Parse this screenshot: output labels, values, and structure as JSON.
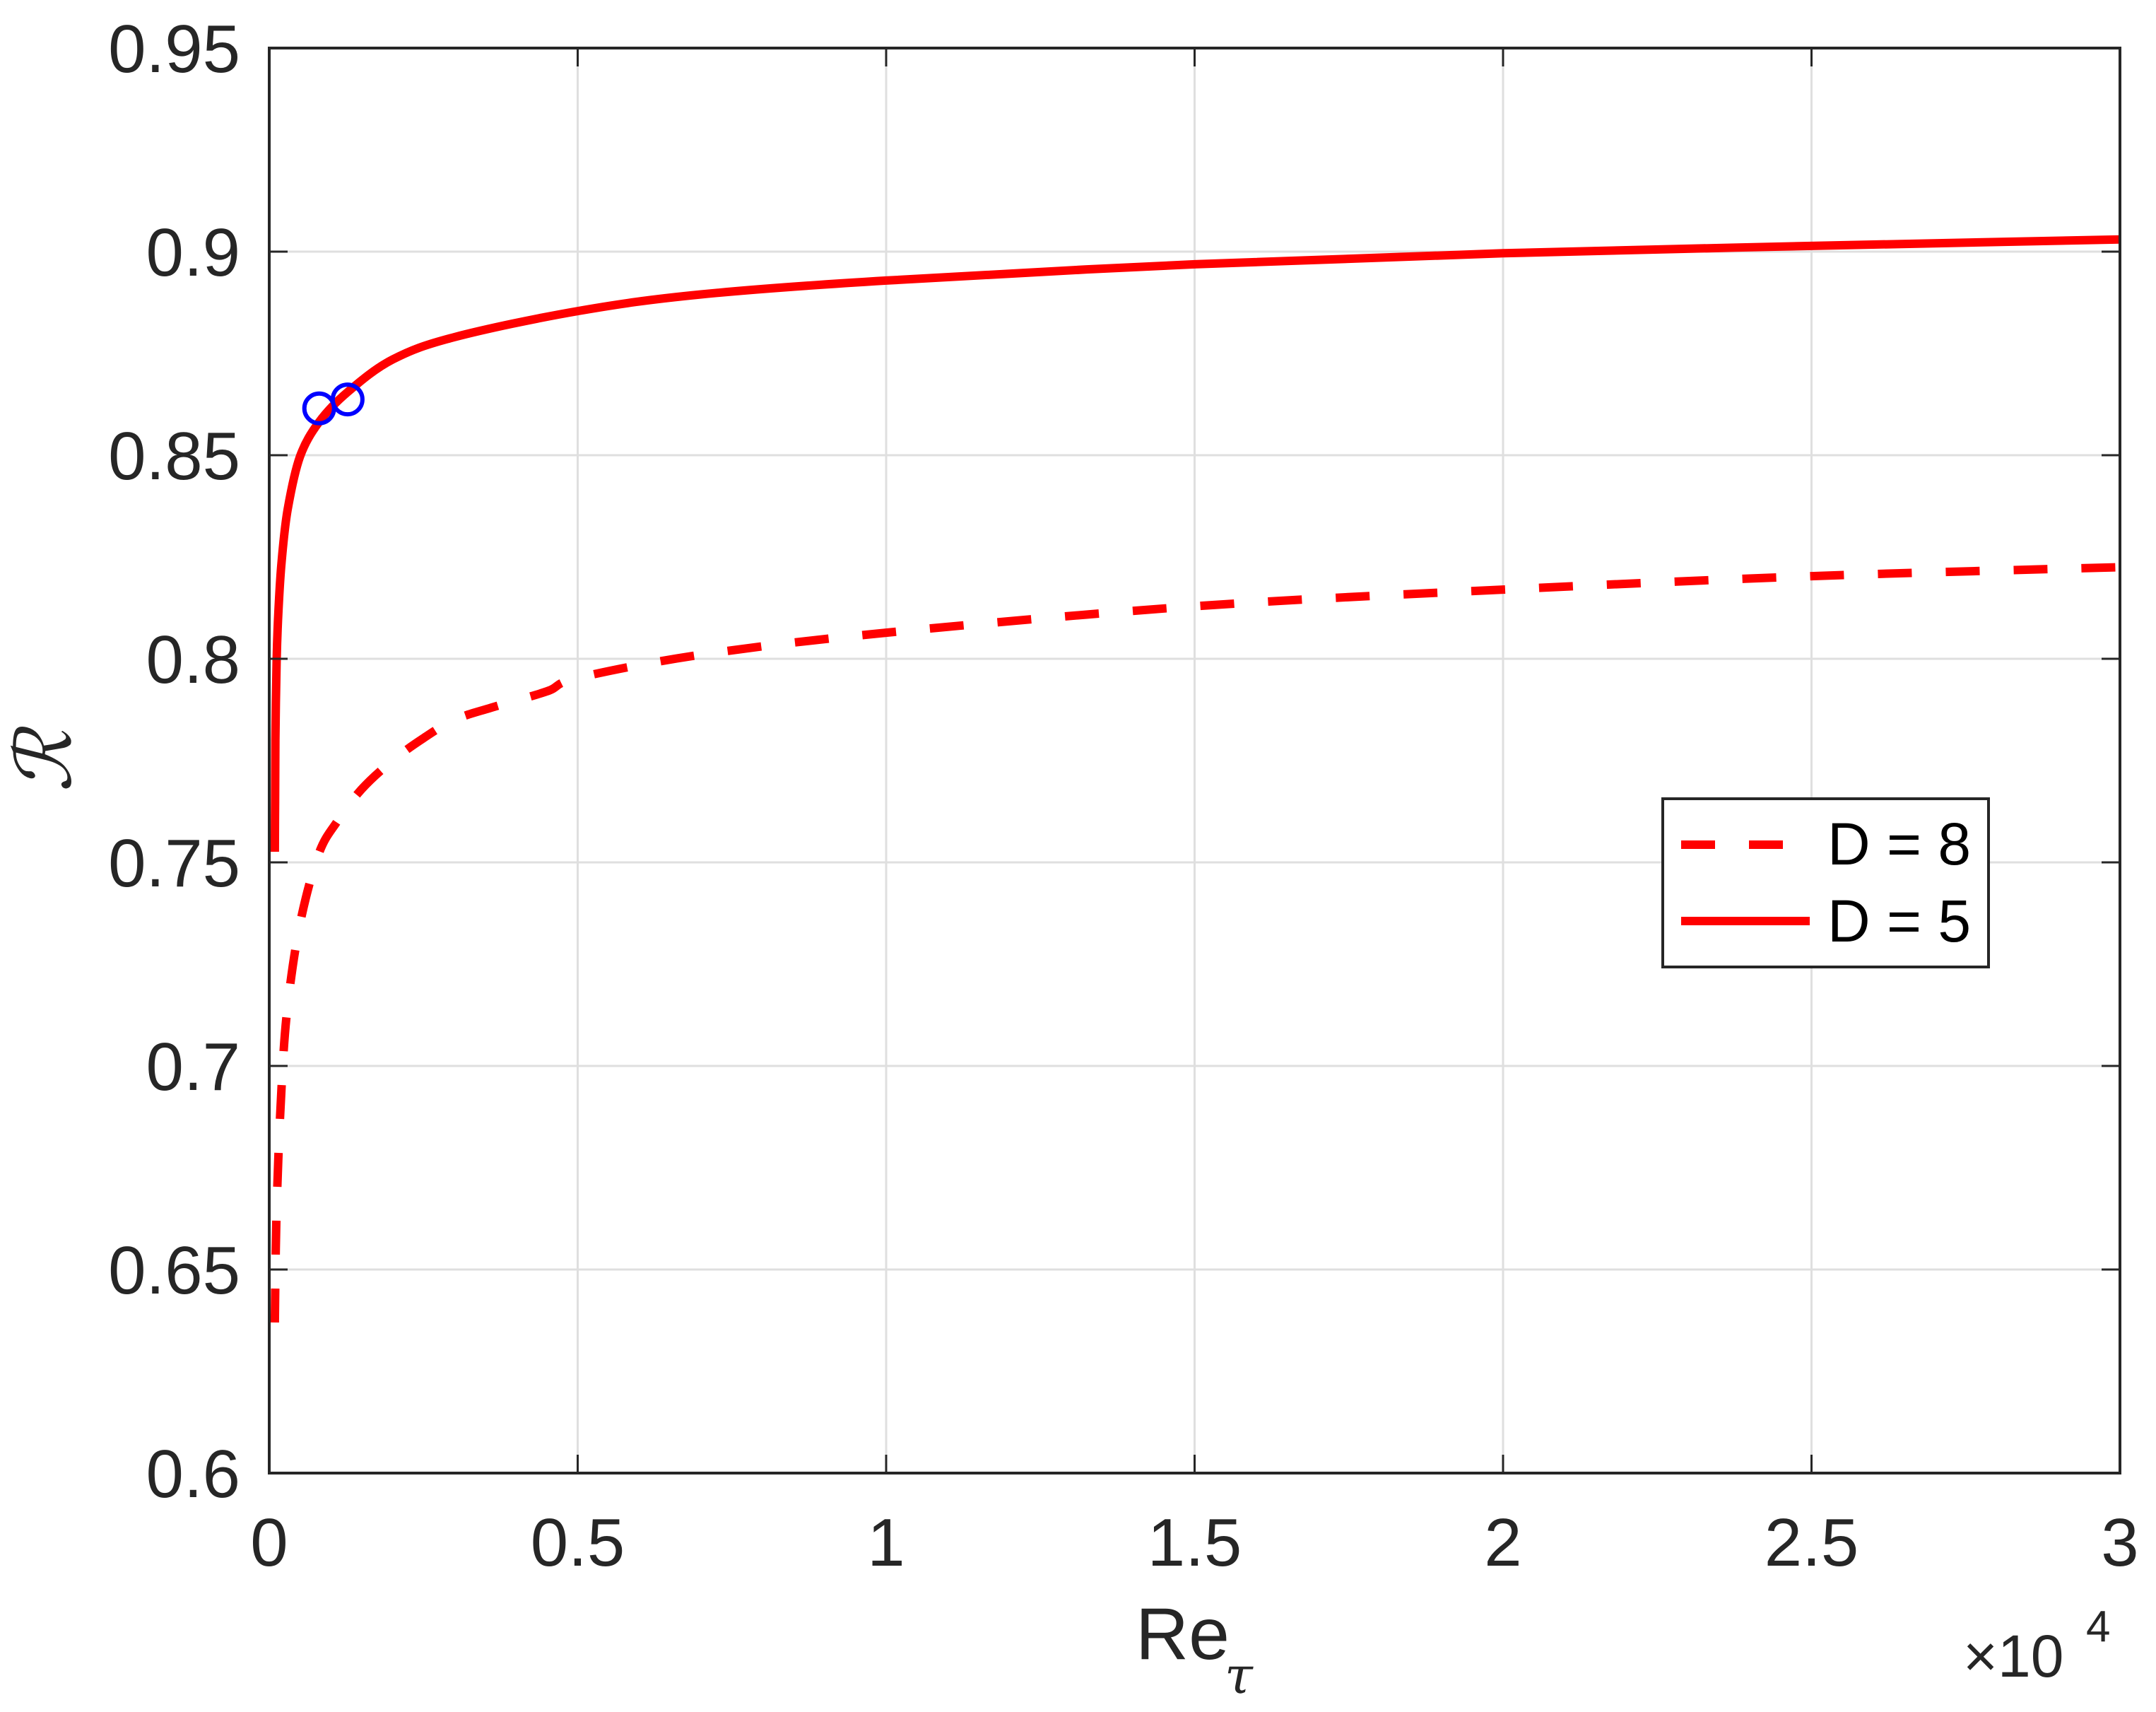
{
  "chart_data": {
    "type": "line",
    "title": "",
    "xlabel": "Re_τ",
    "xlabel_main": "Re",
    "xlabel_sub": "τ",
    "ylabel": "ℛ",
    "x_multiplier": "×10",
    "x_multiplier_exp": "4",
    "xlim": [
      0,
      3
    ],
    "ylim": [
      0.6,
      0.95
    ],
    "x_scale_note": "x values in units of 10^4",
    "grid": true,
    "box": true,
    "xticks": [
      0,
      0.5,
      1,
      1.5,
      2,
      2.5,
      3
    ],
    "xtick_labels": [
      "0",
      "0.5",
      "1",
      "1.5",
      "2",
      "2.5",
      "3"
    ],
    "yticks": [
      0.6,
      0.65,
      0.7,
      0.75,
      0.8,
      0.85,
      0.9,
      0.95
    ],
    "ytick_labels": [
      "0.6",
      "0.65",
      "0.7",
      "0.75",
      "0.8",
      "0.85",
      "0.9",
      "0.95"
    ],
    "legend_position": "right-center (inside axes)",
    "series": [
      {
        "name": "D = 8",
        "style": "dashed",
        "color": "#ff0000",
        "x": [
          0.009,
          0.012,
          0.02,
          0.03,
          0.05,
          0.08,
          0.11,
          0.15,
          0.2,
          0.25,
          0.3,
          0.36,
          0.45,
          0.5,
          0.7,
          1.0,
          1.5,
          2.0,
          2.5,
          3.0
        ],
        "y": [
          0.637,
          0.665,
          0.695,
          0.715,
          0.735,
          0.752,
          0.76,
          0.768,
          0.775,
          0.7805,
          0.785,
          0.788,
          0.792,
          0.7953,
          0.801,
          0.8064,
          0.8129,
          0.817,
          0.8203,
          0.8225
        ]
      },
      {
        "name": "D = 5",
        "style": "solid",
        "color": "#ff0000",
        "x": [
          0.009,
          0.0095,
          0.01,
          0.012,
          0.015,
          0.02,
          0.03,
          0.05,
          0.081,
          0.127,
          0.2,
          0.3,
          0.5,
          0.7,
          1.0,
          1.5,
          2.0,
          2.5,
          3.0
        ],
        "y": [
          0.7526,
          0.765,
          0.78,
          0.7997,
          0.812,
          0.8238,
          0.8368,
          0.8497,
          0.8582,
          0.8655,
          0.8735,
          0.879,
          0.8854,
          0.8895,
          0.8929,
          0.8969,
          0.8996,
          0.9014,
          0.903
        ]
      }
    ],
    "markers": [
      {
        "name": "data-point-1",
        "shape": "open-circle",
        "color": "#0000ff",
        "x": 0.081,
        "y": 0.8615
      },
      {
        "name": "data-point-2",
        "shape": "open-circle",
        "color": "#0000ff",
        "x": 0.127,
        "y": 0.8637
      }
    ]
  },
  "legend": {
    "items": [
      {
        "label": "D = 8",
        "style": "dashed"
      },
      {
        "label": "D = 5",
        "style": "solid"
      }
    ]
  },
  "colors": {
    "axis": "#262626",
    "grid": "#dfdfdf",
    "series": "#ff0000",
    "markers": "#0000ff"
  }
}
